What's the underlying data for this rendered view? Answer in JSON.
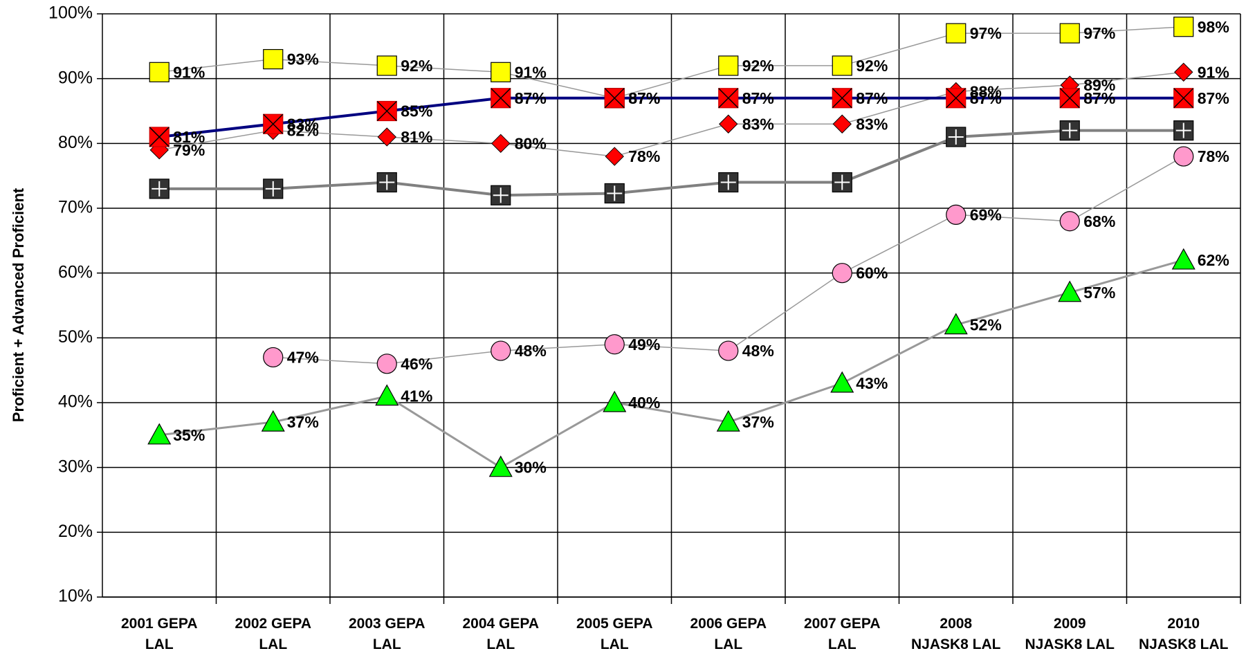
{
  "chart_data": {
    "type": "line",
    "y_label": "Proficient + Advanced Proficient",
    "categories": [
      "2001 GEPA\nLAL",
      "2002 GEPA\nLAL",
      "2003 GEPA\nLAL",
      "2004 GEPA\nLAL",
      "2005 GEPA\nLAL",
      "2006 GEPA\nLAL",
      "2007 GEPA\nLAL",
      "2008\nNJASK8 LAL",
      "2009\nNJASK8 LAL",
      "2010\nNJASK8 LAL"
    ],
    "ylim": [
      10,
      100
    ],
    "yticks": [
      {
        "value": 10,
        "label": "10%"
      },
      {
        "value": 20,
        "label": "20%"
      },
      {
        "value": 30,
        "label": "30%"
      },
      {
        "value": 40,
        "label": "40%"
      },
      {
        "value": 50,
        "label": "50%"
      },
      {
        "value": 60,
        "label": "60%"
      },
      {
        "value": 70,
        "label": "70%"
      },
      {
        "value": 80,
        "label": "80%"
      },
      {
        "value": 90,
        "label": "90%"
      },
      {
        "value": 100,
        "label": "100%"
      }
    ],
    "grid": true,
    "series": [
      {
        "color": "#ffff00",
        "line_color": "#999999",
        "marker": "square",
        "values": [
          91,
          93,
          92,
          91,
          87,
          92,
          92,
          97,
          97,
          98
        ],
        "value_labels": [
          "91%",
          "93%",
          "92%",
          "91%",
          "87%",
          "92%",
          "92%",
          "97%",
          "97%",
          "98%"
        ]
      },
      {
        "color": "#ff0000",
        "line_color": "#000080",
        "marker": "square-x",
        "values": [
          81,
          83,
          85,
          87,
          87,
          87,
          87,
          87,
          87,
          87
        ],
        "value_labels": [
          "81%",
          "83%",
          "85%",
          "87%",
          "87%",
          "87%",
          "87%",
          "87%",
          "87%",
          "87%"
        ]
      },
      {
        "color": "#ff0000",
        "line_color": "#999999",
        "marker": "diamond",
        "values": [
          79,
          82,
          81,
          80,
          78,
          83,
          83,
          88,
          89,
          91
        ],
        "value_labels": [
          "79%",
          "82%",
          "81%",
          "80%",
          "78%",
          "83%",
          "83%",
          "88%",
          "89%",
          "91%"
        ]
      },
      {
        "color": "#333333",
        "line_color": "#808080",
        "marker": "square-plus",
        "values": [
          73,
          73,
          74,
          72,
          72.3,
          74,
          74,
          81,
          82,
          82
        ]
      },
      {
        "color": "#ff99cc",
        "line_color": "#999999",
        "marker": "circle",
        "values": [
          null,
          47,
          46,
          48,
          49,
          48,
          60,
          69,
          68,
          78
        ],
        "value_labels": [
          null,
          "47%",
          "46%",
          "48%",
          "49%",
          "48%",
          "60%",
          "69%",
          "68%",
          "78%"
        ]
      },
      {
        "color": "#00ff00",
        "line_color": "#999999",
        "marker": "triangle",
        "values": [
          35,
          37,
          41,
          30,
          40,
          37,
          43,
          52,
          57,
          62
        ],
        "value_labels": [
          "35%",
          "37%",
          "41%",
          "30%",
          "40%",
          "37%",
          "43%",
          "52%",
          "57%",
          "62%"
        ]
      }
    ]
  }
}
